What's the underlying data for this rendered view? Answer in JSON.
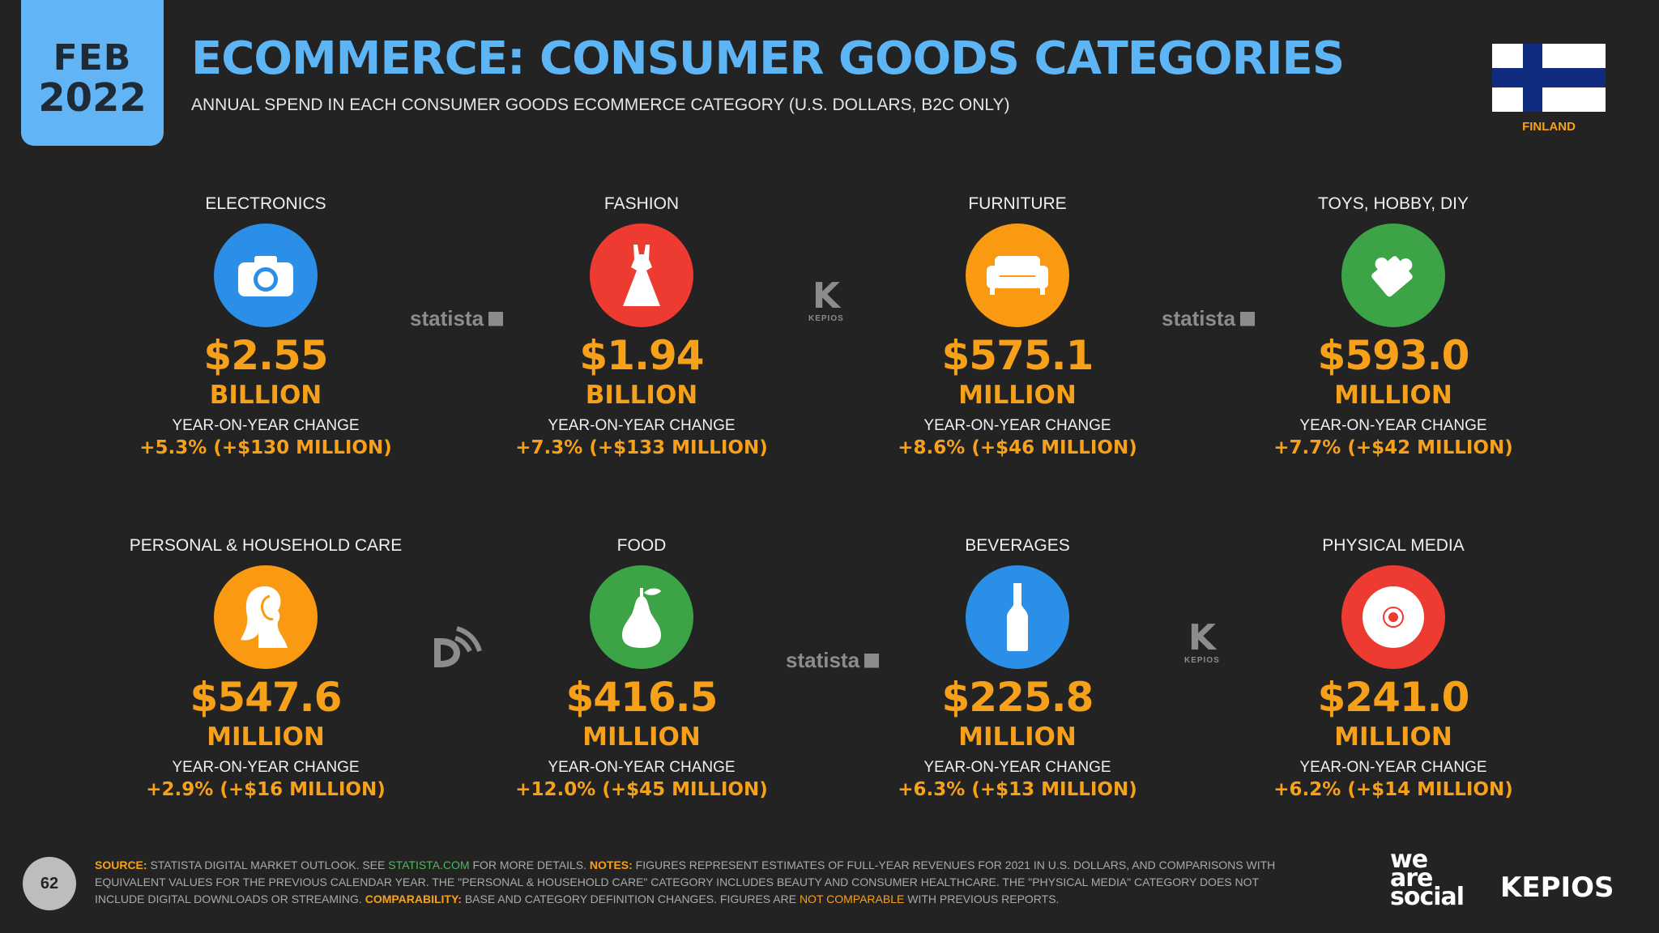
{
  "header": {
    "month": "FEB",
    "year": "2022",
    "title": "ECOMMERCE: CONSUMER GOODS CATEGORIES",
    "subtitle": "ANNUAL SPEND IN EACH CONSUMER GOODS ECOMMERCE CATEGORY (U.S. DOLLARS, B2C ONLY)",
    "country": "FINLAND"
  },
  "colors": {
    "accent": "#f7a11a",
    "title": "#5db5f6",
    "background": "#232323"
  },
  "categories": [
    {
      "label": "ELECTRONICS",
      "icon": "camera-icon",
      "color": "#2b8fe8",
      "value": "$2.55",
      "unit": "BILLION",
      "yoy_label": "YEAR-ON-YEAR CHANGE",
      "yoy": "+5.3% (+$130 MILLION)"
    },
    {
      "label": "FASHION",
      "icon": "dress-icon",
      "color": "#ee3b31",
      "value": "$1.94",
      "unit": "BILLION",
      "yoy_label": "YEAR-ON-YEAR CHANGE",
      "yoy": "+7.3% (+$133 MILLION)"
    },
    {
      "label": "FURNITURE",
      "icon": "sofa-icon",
      "color": "#f99a12",
      "value": "$575.1",
      "unit": "MILLION",
      "yoy_label": "YEAR-ON-YEAR CHANGE",
      "yoy": "+8.6% (+$46 MILLION)"
    },
    {
      "label": "TOYS, HOBBY, DIY",
      "icon": "puzzle-icon",
      "color": "#3ca447",
      "value": "$593.0",
      "unit": "MILLION",
      "yoy_label": "YEAR-ON-YEAR CHANGE",
      "yoy": "+7.7% (+$42 MILLION)"
    },
    {
      "label": "PERSONAL & HOUSEHOLD CARE",
      "icon": "woman-profile-icon",
      "color": "#f99a12",
      "value": "$547.6",
      "unit": "MILLION",
      "yoy_label": "YEAR-ON-YEAR CHANGE",
      "yoy": "+2.9% (+$16 MILLION)"
    },
    {
      "label": "FOOD",
      "icon": "pear-icon",
      "color": "#3ca447",
      "value": "$416.5",
      "unit": "MILLION",
      "yoy_label": "YEAR-ON-YEAR CHANGE",
      "yoy": "+12.0% (+$45 MILLION)"
    },
    {
      "label": "BEVERAGES",
      "icon": "bottle-icon",
      "color": "#2b8fe8",
      "value": "$225.8",
      "unit": "MILLION",
      "yoy_label": "YEAR-ON-YEAR CHANGE",
      "yoy": "+6.3% (+$13 MILLION)"
    },
    {
      "label": "PHYSICAL MEDIA",
      "icon": "disc-icon",
      "color": "#ee3b31",
      "value": "$241.0",
      "unit": "MILLION",
      "yoy_label": "YEAR-ON-YEAR CHANGE",
      "yoy": "+6.2% (+$14 MILLION)"
    }
  ],
  "watermarks": {
    "statista": "statista",
    "kepios_small": "KEPIOS"
  },
  "footer": {
    "page_number": "62",
    "source_label": "SOURCE:",
    "source_text_a": " STATISTA DIGITAL MARKET OUTLOOK. SEE ",
    "source_link": "STATISTA.COM",
    "source_text_b": " FOR MORE DETAILS. ",
    "notes_label": "NOTES:",
    "notes_text": " FIGURES REPRESENT ESTIMATES OF FULL-YEAR REVENUES FOR 2021 IN U.S. DOLLARS, AND COMPARISONS WITH EQUIVALENT VALUES FOR THE PREVIOUS CALENDAR YEAR. THE \"PERSONAL & HOUSEHOLD CARE\" CATEGORY INCLUDES BEAUTY AND CONSUMER HEALTHCARE. THE \"PHYSICAL MEDIA\" CATEGORY DOES NOT INCLUDE DIGITAL DOWNLOADS OR STREAMING. ",
    "comparability_label": "COMPARABILITY:",
    "comparability_text": " BASE AND CATEGORY DEFINITION CHANGES. FIGURES ARE ",
    "not_comparable": "NOT COMPARABLE",
    "comparability_end": " WITH PREVIOUS REPORTS."
  },
  "brands": {
    "we": "we",
    "are": "are",
    "social": "social",
    "kepios": "KEPIOS"
  }
}
